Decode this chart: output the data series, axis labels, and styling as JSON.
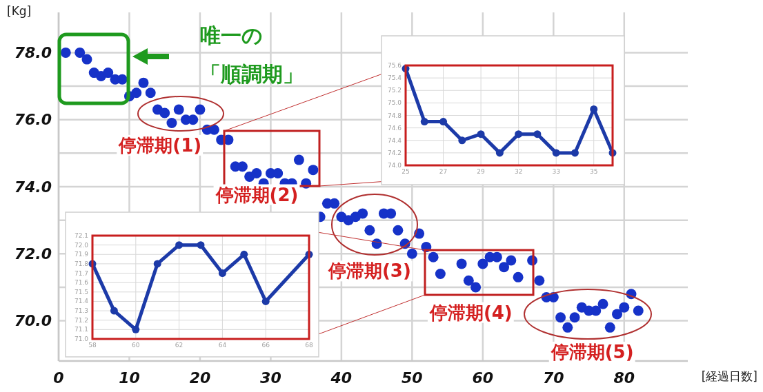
{
  "chart_data": [
    {
      "type": "scatter",
      "xlabel": "[経過日数]",
      "ylabel": "[Kg]",
      "marker": "circle",
      "grid": true,
      "color": "#1632c8",
      "xlim": [
        0,
        89
      ],
      "ylim": [
        68.8,
        79.2
      ],
      "xticks": [
        0,
        10,
        20,
        30,
        40,
        50,
        60,
        70,
        80
      ],
      "yticks": [
        {
          "value": 70,
          "label": "70.0"
        },
        {
          "value": 71,
          "label": null
        },
        {
          "value": 72,
          "label": "72.0"
        },
        {
          "value": 73,
          "label": null
        },
        {
          "value": 74,
          "label": "74.0"
        },
        {
          "value": 75,
          "label": null
        },
        {
          "value": 76,
          "label": "76.0"
        },
        {
          "value": 77,
          "label": null
        },
        {
          "value": 78,
          "label": "78.0"
        }
      ],
      "x": [
        1,
        3,
        4,
        5,
        6,
        7,
        8,
        9,
        10,
        11,
        12,
        13,
        14,
        15,
        16,
        17,
        18,
        19,
        20,
        21,
        22,
        23,
        24,
        25,
        26,
        27,
        28,
        29,
        30,
        31,
        32,
        33,
        34,
        35,
        36,
        37,
        38,
        39,
        40,
        41,
        42,
        43,
        44,
        45,
        46,
        47,
        48,
        49,
        50,
        51,
        52,
        53,
        54,
        57,
        58,
        59,
        60,
        61,
        62,
        63,
        64,
        65,
        67,
        68,
        69,
        70,
        71,
        72,
        73,
        74,
        75,
        76,
        77,
        78,
        79,
        80,
        81,
        82
      ],
      "values": [
        78.0,
        78.0,
        77.8,
        77.4,
        77.3,
        77.4,
        77.2,
        77.2,
        76.7,
        76.8,
        77.1,
        76.8,
        76.3,
        76.2,
        75.9,
        76.3,
        76.0,
        76.0,
        76.3,
        75.7,
        75.7,
        75.4,
        75.4,
        74.6,
        74.6,
        74.3,
        74.4,
        74.1,
        74.4,
        74.4,
        74.1,
        74.1,
        74.8,
        74.1,
        74.5,
        73.1,
        73.5,
        73.5,
        73.1,
        73.0,
        73.1,
        73.2,
        72.7,
        72.3,
        73.2,
        73.2,
        72.7,
        72.3,
        72.0,
        72.6,
        72.2,
        71.9,
        71.4,
        71.7,
        71.2,
        71.0,
        71.7,
        71.9,
        71.9,
        71.6,
        71.8,
        71.3,
        71.8,
        71.2,
        70.7,
        70.7,
        70.1,
        69.8,
        70.1,
        70.4,
        70.3,
        70.3,
        70.5,
        69.8,
        70.2,
        70.4,
        70.8,
        70.3
      ],
      "annotations": [
        "唯一の「順調期」",
        {
          "text": "停滞期(1)",
          "x": 17,
          "y": 76.1
        },
        {
          "text": "停滞期(2)",
          "x": 30.5,
          "y": 74.4
        },
        {
          "text": "停滞期(3)",
          "x": 44,
          "y": 72.8
        },
        {
          "text": "停滞期(4)",
          "x": 60,
          "y": 71.5
        },
        {
          "text": "停滞期(5)",
          "x": 75.5,
          "y": 70.3
        }
      ]
    },
    {
      "type": "line",
      "marker": "circle",
      "grid": true,
      "color": "#1c3aa8",
      "categories": [
        "25",
        null,
        "27",
        null,
        "29",
        null,
        "32",
        null,
        "33",
        null,
        "35",
        null
      ],
      "ylim": [
        74.0,
        75.6
      ],
      "yticks": [
        {
          "value": 74.0,
          "label": "74.0"
        },
        {
          "value": 74.2,
          "label": "74.2"
        },
        {
          "value": 74.4,
          "label": "74.4"
        },
        {
          "value": 74.6,
          "label": "74.6"
        },
        {
          "value": 74.8,
          "label": "74.8"
        },
        {
          "value": 75.0,
          "label": "75.0"
        },
        {
          "value": 75.2,
          "label": "75.2"
        },
        {
          "value": 75.4,
          "label": "75.4"
        },
        {
          "value": 75.6,
          "label": "75.6"
        }
      ],
      "values": [
        75.55,
        74.7,
        74.7,
        74.4,
        74.5,
        74.2,
        74.5,
        74.5,
        74.2,
        74.2,
        74.9,
        74.2
      ]
    },
    {
      "type": "line",
      "marker": "circle",
      "grid": true,
      "color": "#1c3aa8",
      "xlim": [
        58,
        68
      ],
      "xticks": [
        58,
        60,
        62,
        64,
        66,
        68
      ],
      "ylim": [
        71.0,
        72.1
      ],
      "yticks": [
        {
          "value": 71.0,
          "label": "71.0"
        },
        {
          "value": 71.1,
          "label": "71.1"
        },
        {
          "value": 71.2,
          "label": "71.2"
        },
        {
          "value": 71.3,
          "label": "71.3"
        },
        {
          "value": 71.4,
          "label": "71.4"
        },
        {
          "value": 71.5,
          "label": "71.5"
        },
        {
          "value": 71.6,
          "label": "71.6"
        },
        {
          "value": 71.7,
          "label": "71.7"
        },
        {
          "value": 71.8,
          "label": "71.8"
        },
        {
          "value": 71.9,
          "label": "71.9"
        },
        {
          "value": 72.0,
          "label": "72.0"
        },
        {
          "value": 72.1,
          "label": "72.1"
        }
      ],
      "x": [
        58,
        59,
        60,
        61,
        62,
        63,
        64,
        65,
        66,
        68
      ],
      "values": [
        71.8,
        71.3,
        71.1,
        71.8,
        72.0,
        72.0,
        71.7,
        71.9,
        71.4,
        71.9
      ]
    }
  ]
}
